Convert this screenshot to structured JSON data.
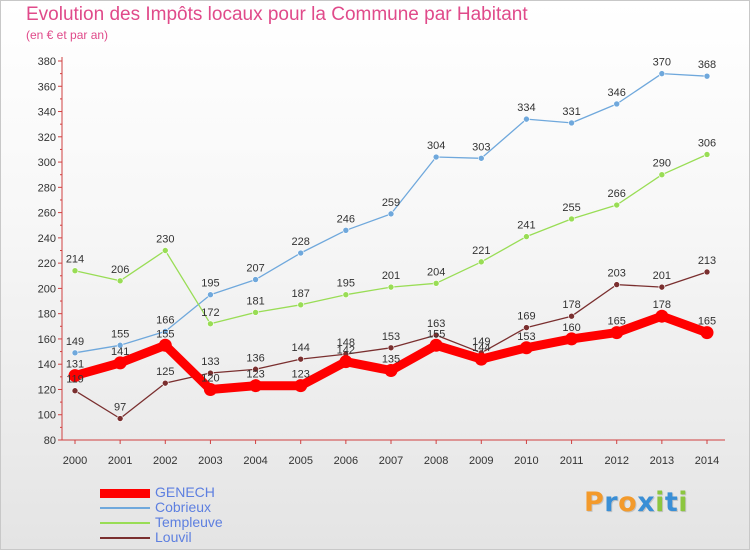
{
  "header": {
    "title": "Evolution des Impôts locaux pour la Commune par Habitant",
    "subtitle": "(en € et par an)"
  },
  "brand": {
    "letters": [
      "P",
      "r",
      "o",
      "x",
      "i",
      "t",
      "i"
    ],
    "colors": [
      "#f39a2b",
      "#3a8fd6",
      "#f39a2b",
      "#3a8fd6",
      "#8cc63f",
      "#3a8fd6",
      "#8cc63f"
    ]
  },
  "chart_data": {
    "type": "line",
    "title": "Evolution des Impôts locaux pour la Commune par Habitant",
    "subtitle": "(en € et par an)",
    "xlabel": "",
    "ylabel": "",
    "x": [
      2000,
      2001,
      2002,
      2003,
      2004,
      2005,
      2006,
      2007,
      2008,
      2009,
      2010,
      2011,
      2012,
      2013,
      2014
    ],
    "ylim": [
      80,
      380
    ],
    "yticks": [
      80,
      100,
      120,
      140,
      160,
      180,
      200,
      220,
      240,
      260,
      280,
      300,
      320,
      340,
      360,
      380
    ],
    "grid": false,
    "legend_position": "bottom-left",
    "series": [
      {
        "name": "GENECH",
        "color": "#ff0000",
        "values": [
          131,
          141,
          155,
          120,
          123,
          123,
          142,
          135,
          155,
          144,
          153,
          160,
          165,
          178,
          165
        ]
      },
      {
        "name": "Cobrieux",
        "color": "#6fa8dc",
        "values": [
          149,
          155,
          166,
          195,
          207,
          228,
          246,
          259,
          304,
          303,
          334,
          331,
          346,
          370,
          368
        ]
      },
      {
        "name": "Templeuve",
        "color": "#99dd55",
        "values": [
          214,
          206,
          230,
          172,
          181,
          187,
          195,
          201,
          204,
          221,
          241,
          255,
          266,
          290,
          306
        ]
      },
      {
        "name": "Louvil",
        "color": "#7a2f2f",
        "values": [
          119,
          97,
          125,
          133,
          136,
          144,
          148,
          153,
          163,
          149,
          169,
          178,
          203,
          201,
          213
        ]
      }
    ]
  }
}
